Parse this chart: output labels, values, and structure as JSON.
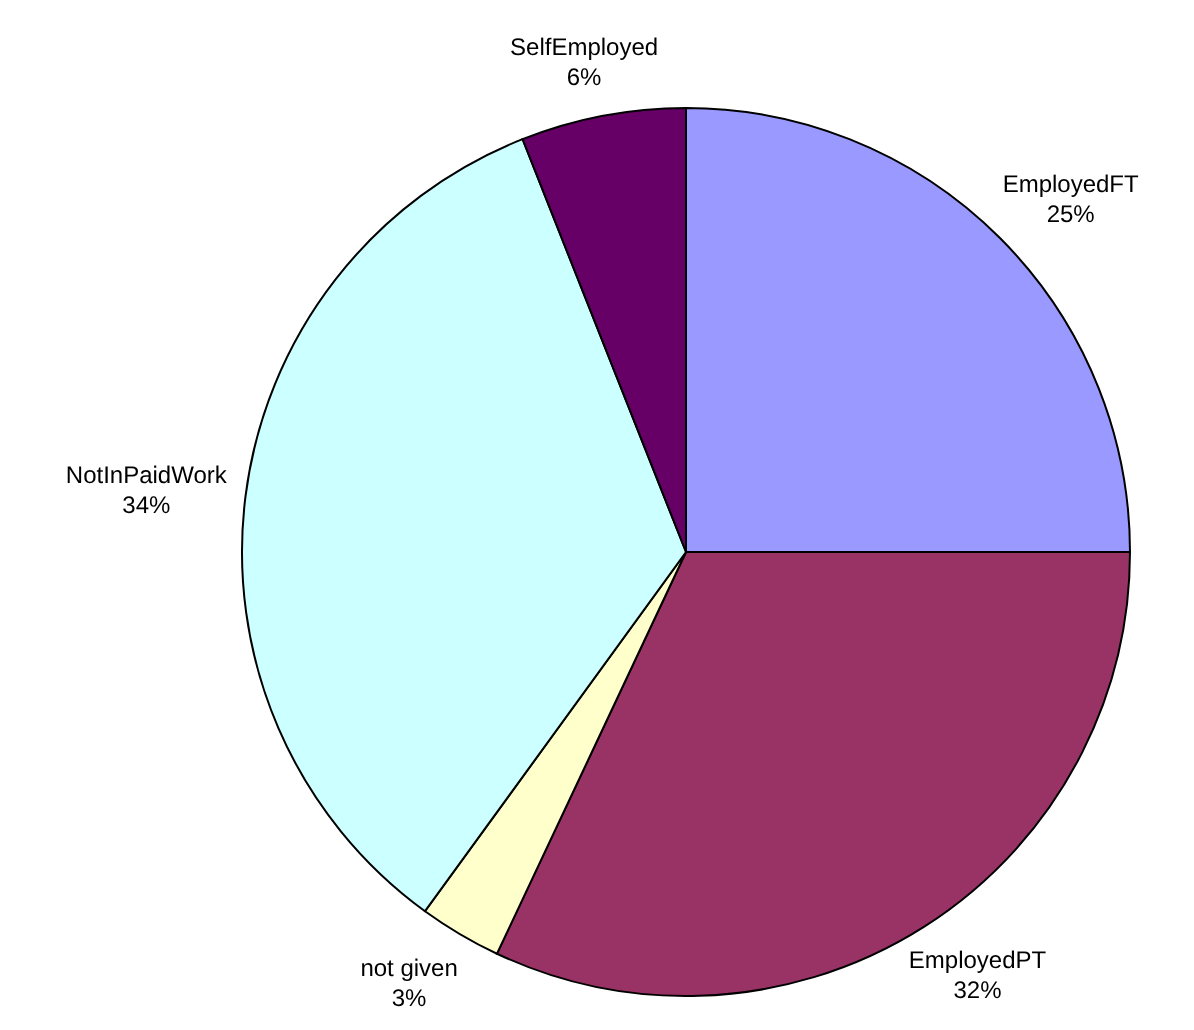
{
  "chart_data": {
    "type": "pie",
    "categories": [
      "EmployedFT",
      "EmployedPT",
      "not given",
      "NotInPaidWork",
      "SelfEmployed"
    ],
    "values": [
      25,
      32,
      3,
      34,
      6
    ],
    "colors": [
      "#9999ff",
      "#993366",
      "#ffffcc",
      "#ccffff",
      "#660066"
    ],
    "value_labels": [
      "25%",
      "32%",
      "3%",
      "34%",
      "6%"
    ]
  }
}
